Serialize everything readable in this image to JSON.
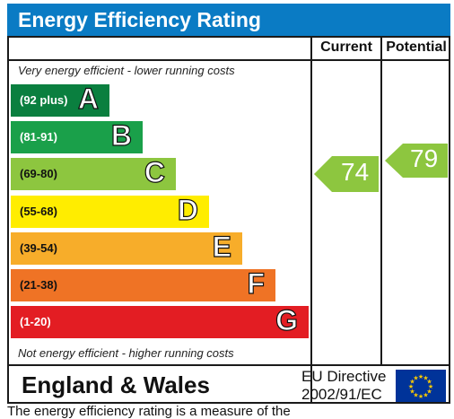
{
  "header": {
    "title": "Energy Efficiency Rating"
  },
  "columns": {
    "current": "Current",
    "potential": "Potential"
  },
  "notes": {
    "top": "Very energy efficient - lower running costs",
    "bottom": "Not energy efficient - higher running costs"
  },
  "bands": [
    {
      "range": "(92 plus)",
      "letter": "A",
      "color": "#0a7f3f",
      "text_color": "#ffffff"
    },
    {
      "range": "(81-91)",
      "letter": "B",
      "color": "#1aa04a",
      "text_color": "#ffffff"
    },
    {
      "range": "(69-80)",
      "letter": "C",
      "color": "#8dc63f",
      "text_color": "#111111"
    },
    {
      "range": "(55-68)",
      "letter": "D",
      "color": "#ffed00",
      "text_color": "#111111"
    },
    {
      "range": "(39-54)",
      "letter": "E",
      "color": "#f7ad2a",
      "text_color": "#111111"
    },
    {
      "range": "(21-38)",
      "letter": "F",
      "color": "#ef7325",
      "text_color": "#111111"
    },
    {
      "range": "(1-20)",
      "letter": "G",
      "color": "#e31d23",
      "text_color": "#ffffff"
    }
  ],
  "ratings": {
    "current": {
      "value": "74",
      "band": "C",
      "color": "#8dc63f"
    },
    "potential": {
      "value": "79",
      "band": "C",
      "color": "#8dc63f"
    }
  },
  "footer": {
    "country": "England & Wales",
    "eu_line1": "EU Directive",
    "eu_line2": "2002/91/EC",
    "flag_icon": "eu-flag-icon"
  },
  "truncated_caption": "The energy efficiency rating is a measure of the"
}
